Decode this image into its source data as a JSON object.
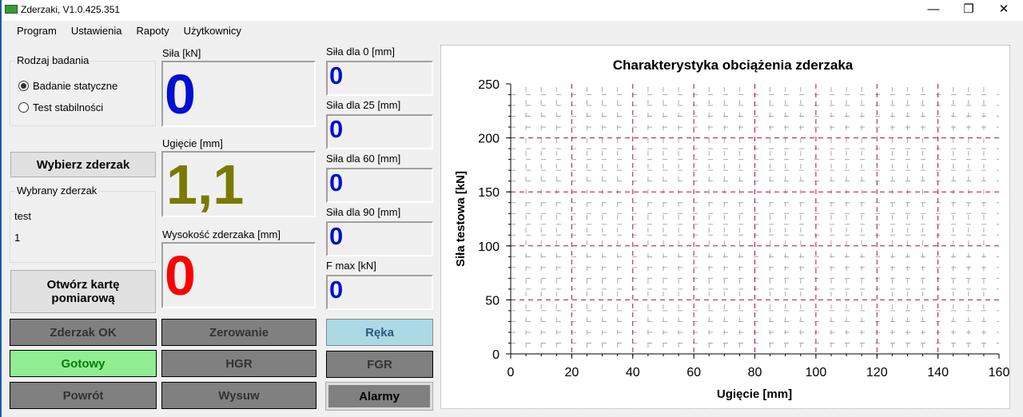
{
  "window": {
    "title": "Zderzaki, V1.0.425.351",
    "minimize": "—",
    "restore": "❐",
    "close": "✕"
  },
  "menu": [
    "Program",
    "Ustawienia",
    "Rapoty",
    "Użytkownicy"
  ],
  "test_type": {
    "label": "Rodzaj badania",
    "options": [
      "Badanie statyczne",
      "Test stabilności"
    ],
    "selected": 0
  },
  "select_bumper_button": "Wybierz zderzak",
  "selected_bumper": {
    "label": "Wybrany zderzak",
    "name": "test",
    "number": "1"
  },
  "open_card_button": "Otwórz kartę pomiarową",
  "readouts": {
    "force": {
      "label": "Siła [kN]",
      "value": "0",
      "color": "#0010d0"
    },
    "deflection": {
      "label": "Ugięcie [mm]",
      "value": "1,1",
      "color": "#7a7a00"
    },
    "height": {
      "label": "Wysokość zderzaka [mm]",
      "value": "0",
      "color": "#ff0000"
    }
  },
  "force_at": [
    {
      "label": "Siła dla 0 [mm]",
      "value": "0"
    },
    {
      "label": "Siła dla 25 [mm]",
      "value": "0"
    },
    {
      "label": "Siła dla 60 [mm]",
      "value": "0"
    },
    {
      "label": "Siła dla 90 [mm]",
      "value": "0"
    },
    {
      "label": "F max [kN]",
      "value": "0"
    }
  ],
  "status_buttons": {
    "zderzak_ok": "Zderzak OK",
    "gotowy": "Gotowy",
    "powrot": "Powrót",
    "zerowanie": "Zerowanie",
    "hgr": "HGR",
    "wysuw": "Wysuw",
    "reka": "Ręka",
    "fgr": "FGR",
    "alarmy": "Alarmy"
  },
  "colors": {
    "gotowy_bg": "#90ee90",
    "gotowy_fg": "#0a7a0a",
    "reka_bg": "#add8e6",
    "reka_fg": "#2a5a7a",
    "inactive_bg": "#808080"
  },
  "chart_data": {
    "type": "line",
    "title": "Charakterystyka obciążenia zderzaka",
    "xlabel": "Ugięcie [mm]",
    "ylabel": "Siła testowa [kN]",
    "xlim": [
      0,
      160
    ],
    "ylim": [
      0,
      250
    ],
    "xticks": [
      0,
      20,
      40,
      60,
      80,
      100,
      120,
      140,
      160
    ],
    "yticks": [
      0,
      50,
      100,
      150,
      200,
      250
    ],
    "grid": true,
    "series": []
  }
}
